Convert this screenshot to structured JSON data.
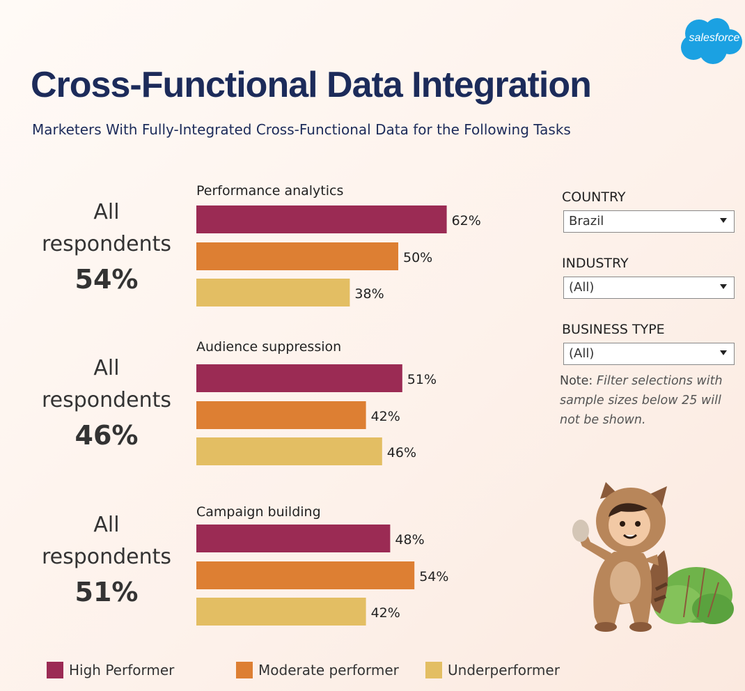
{
  "brand": {
    "logo_text": "salesforce",
    "logo_color": "#1ba1e2"
  },
  "title": "Cross-Functional Data Integration",
  "subtitle": "Marketers With Fully-Integrated Cross-Functional Data for the Following Tasks",
  "all_respondents_label": [
    "All",
    "respondents"
  ],
  "filters": {
    "country": {
      "label": "COUNTRY",
      "value": "Brazil"
    },
    "industry": {
      "label": "INDUSTRY",
      "value": "(All)"
    },
    "business_type": {
      "label": "BUSINESS TYPE",
      "value": "(All)"
    }
  },
  "note": {
    "prefix": "Note:",
    "text": "Filter selections with sample sizes below 25 will not be shown."
  },
  "chart_data": {
    "type": "bar",
    "orientation": "horizontal",
    "value_suffix": "%",
    "xlim": [
      0,
      70
    ],
    "series": [
      {
        "name": "High Performer",
        "color": "#9b2b54"
      },
      {
        "name": "Moderate performer",
        "color": "#dd7f33"
      },
      {
        "name": "Underperformer",
        "color": "#e3be63"
      }
    ],
    "groups": [
      {
        "title": "Performance analytics",
        "all_respondents": "54%",
        "values": [
          62,
          50,
          38
        ]
      },
      {
        "title": "Audience suppression",
        "all_respondents": "46%",
        "values": [
          51,
          42,
          46
        ]
      },
      {
        "title": "Campaign building",
        "all_respondents": "51%",
        "values": [
          48,
          54,
          42
        ]
      }
    ]
  }
}
